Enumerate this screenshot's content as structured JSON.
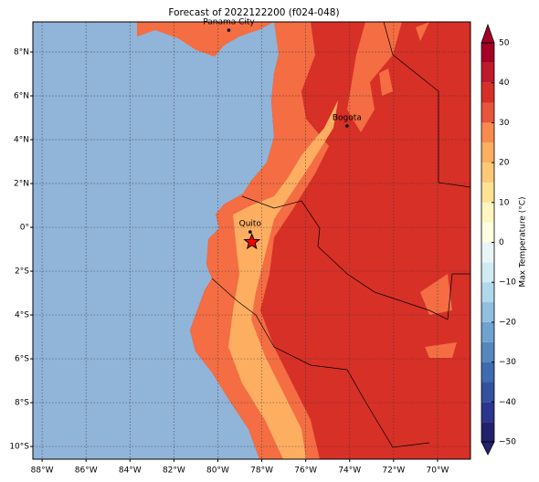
{
  "chart_data": {
    "type": "map",
    "title": "Forecast of 2022122200 (f024-048)",
    "xlim": [
      -88.42,
      -68.5
    ],
    "ylim": [
      -10.58,
      9.375
    ],
    "xticks": [
      {
        "value": -88,
        "label": "88°W"
      },
      {
        "value": -86,
        "label": "86°W"
      },
      {
        "value": -84,
        "label": "84°W"
      },
      {
        "value": -82,
        "label": "82°W"
      },
      {
        "value": -80,
        "label": "80°W"
      },
      {
        "value": -78,
        "label": "78°W"
      },
      {
        "value": -76,
        "label": "76°W"
      },
      {
        "value": -74,
        "label": "74°W"
      },
      {
        "value": -72,
        "label": "72°W"
      },
      {
        "value": -70,
        "label": "70°W"
      }
    ],
    "yticks": [
      {
        "value": -10,
        "label": "10°S"
      },
      {
        "value": -8,
        "label": "8°S"
      },
      {
        "value": -6,
        "label": "6°S"
      },
      {
        "value": -4,
        "label": "4°S"
      },
      {
        "value": -2,
        "label": "2°S"
      },
      {
        "value": 0,
        "label": "0°"
      },
      {
        "value": 2,
        "label": "2°N"
      },
      {
        "value": 4,
        "label": "4°N"
      },
      {
        "value": 6,
        "label": "6°N"
      },
      {
        "value": 8,
        "label": "8°N"
      }
    ],
    "grid": true,
    "cities": [
      {
        "name": "Panama City",
        "lon": -79.5,
        "lat": 9.0
      },
      {
        "name": "Bogota",
        "lon": -74.12,
        "lat": 4.63
      },
      {
        "name": "Quito",
        "lon": -78.53,
        "lat": -0.21
      }
    ],
    "marker": {
      "lon": -78.45,
      "lat": -0.67,
      "color": "#ff0000"
    },
    "colorbar": {
      "label": "Max Temperature (°C)",
      "levels": [
        -50,
        -45,
        -40,
        -35,
        -30,
        -25,
        -20,
        -15,
        -10,
        -5,
        0,
        5,
        10,
        15,
        20,
        25,
        30,
        35,
        40,
        45,
        50
      ],
      "colors": [
        "#23216e",
        "#2b3590",
        "#3451a0",
        "#3f6bb0",
        "#5688c0",
        "#6fa2cf",
        "#90bedf",
        "#b1d7ea",
        "#d1ebf3",
        "#eaf6f6",
        "#fefee0",
        "#fef5c0",
        "#fee395",
        "#fdc878",
        "#fdae61",
        "#f98a4d",
        "#e8553a",
        "#d73027",
        "#bd1a2b",
        "#a50026"
      ],
      "ticks": [
        {
          "value": -50,
          "label": "−50"
        },
        {
          "value": -40,
          "label": "−40"
        },
        {
          "value": -30,
          "label": "−30"
        },
        {
          "value": -20,
          "label": "−20"
        },
        {
          "value": -10,
          "label": "−10"
        },
        0,
        10,
        20,
        30,
        40,
        50
      ]
    }
  }
}
